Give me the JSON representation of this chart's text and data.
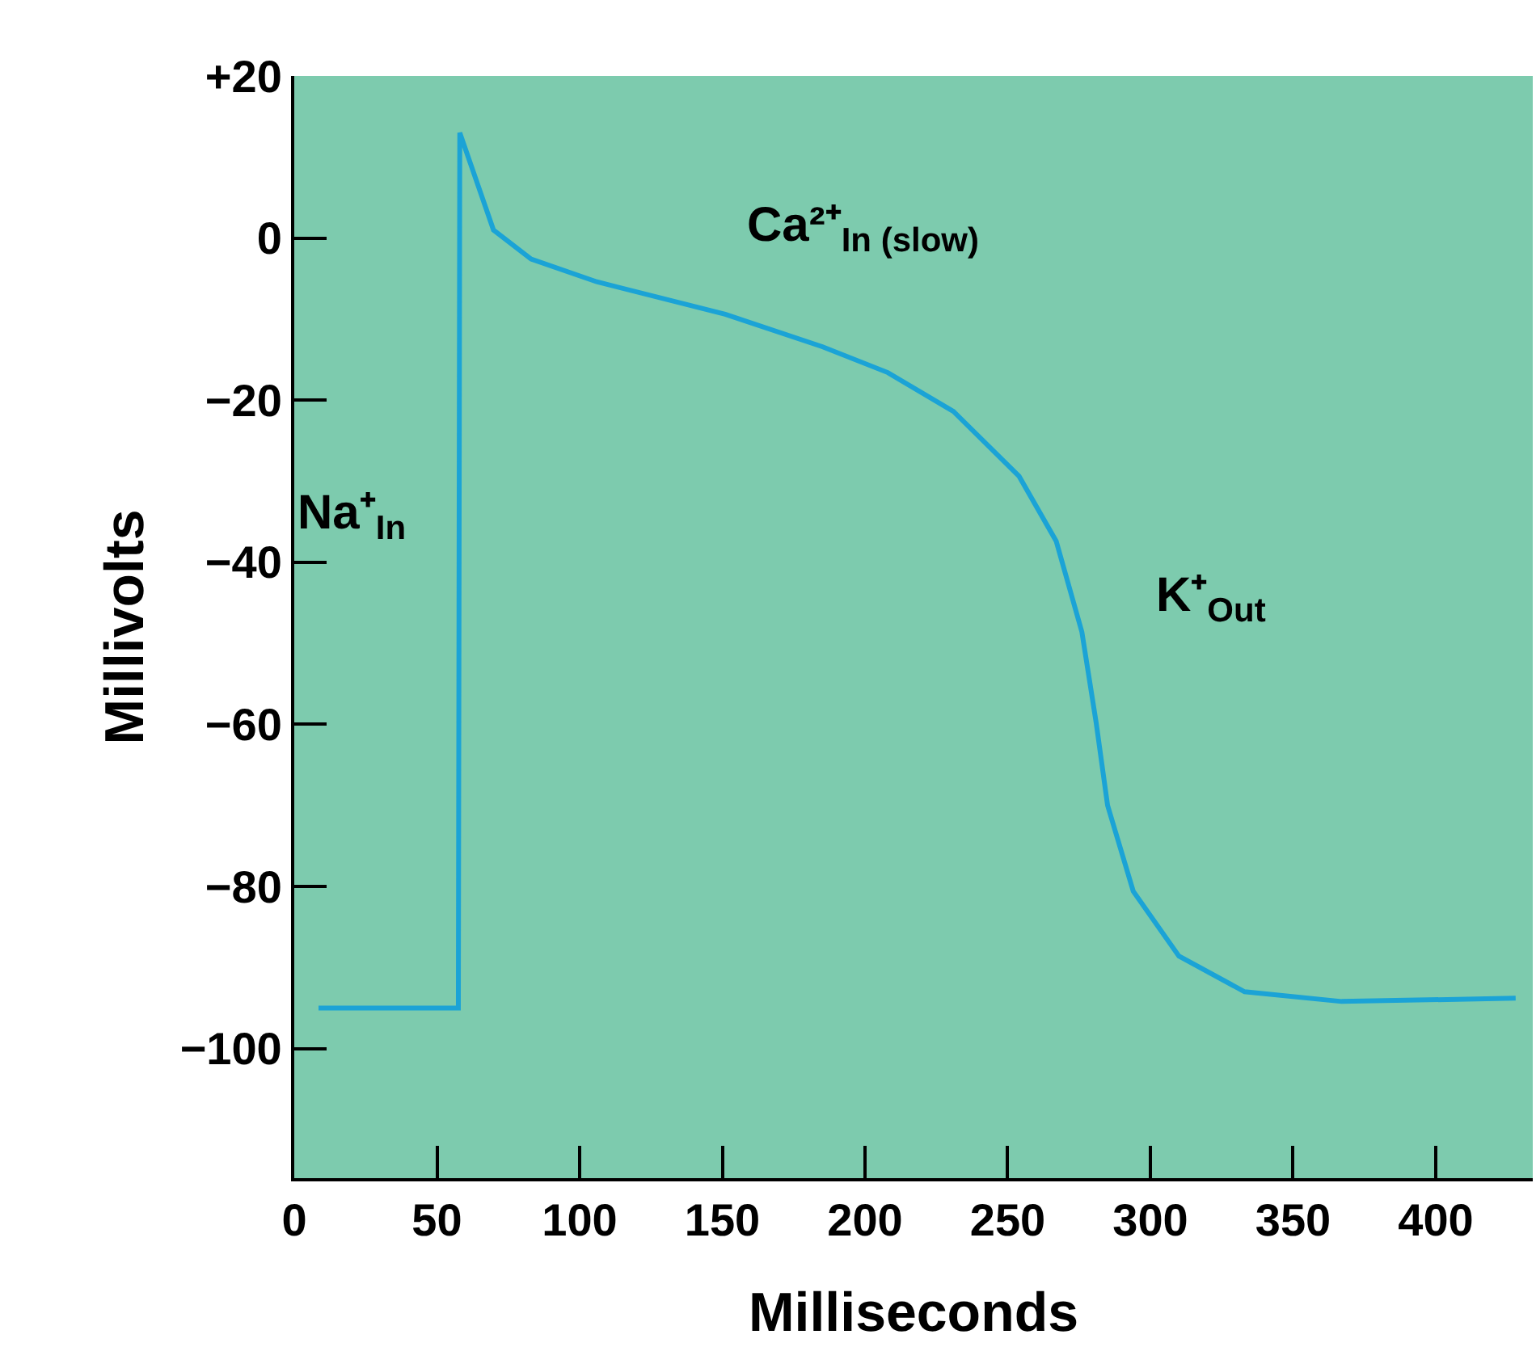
{
  "chart_data": {
    "type": "line",
    "xlabel": "Milliseconds",
    "ylabel": "Millivolts",
    "x": [
      8.5,
      57.5,
      58,
      69.8,
      83,
      106,
      151,
      185,
      208,
      231,
      254,
      267,
      276,
      281,
      285,
      294,
      310,
      333,
      367,
      428
    ],
    "series": [
      {
        "color": "#1ba3d6",
        "values": [
          -95,
          -95,
          13,
          1,
          -2.6,
          -5.4,
          -9.4,
          -13.4,
          -16.6,
          -21.4,
          -29.4,
          -37.4,
          -48.6,
          -59.8,
          -70,
          -80.6,
          -88.6,
          -93,
          -94.2,
          -93.8
        ]
      }
    ],
    "xlim": [
      0,
      434
    ],
    "xticks": [
      0,
      50,
      100,
      150,
      200,
      250,
      300,
      350,
      400
    ],
    "ylim": [
      -116,
      20
    ],
    "yticks": [
      {
        "value": 20,
        "label": "+20"
      },
      0,
      {
        "value": -20,
        "label": "−20"
      },
      {
        "value": -40,
        "label": "−40"
      },
      {
        "value": -60,
        "label": "−60"
      },
      {
        "value": -80,
        "label": "−80"
      },
      {
        "value": -100,
        "label": "−100"
      }
    ],
    "grid": false,
    "legend": false,
    "marker": "none",
    "line_style": "solid",
    "annotations": [
      "Na⁺$_{In}$",
      "Ca²⁺$_{In (slow)}$",
      "K⁺$_{Out}$"
    ]
  }
}
